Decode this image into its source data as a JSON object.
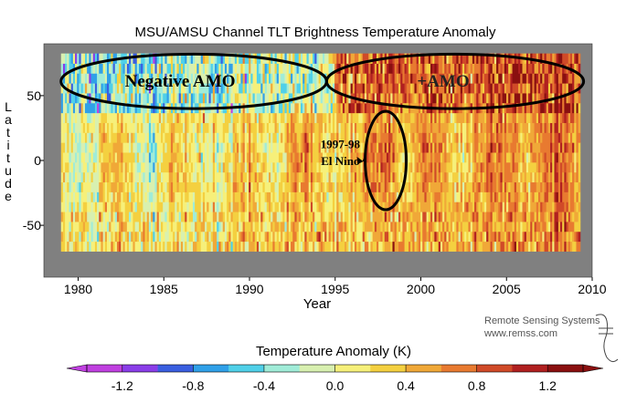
{
  "chart_data": {
    "type": "heatmap",
    "title": "MSU/AMSU Channel TLT Brightness Temperature Anomaly",
    "xlabel": "Year",
    "ylabel": "Latitude",
    "xlim": [
      1978,
      2010
    ],
    "ylim": [
      -90,
      90
    ],
    "data_lat_range": [
      -70,
      82.5
    ],
    "data_year_range": [
      1979,
      2009.3
    ],
    "x_ticks": [
      1980,
      1985,
      1990,
      1995,
      2000,
      2005,
      2010
    ],
    "x_tick_labels": [
      "1980",
      "1985",
      "1990",
      "1995",
      "2000",
      "2005",
      "2010"
    ],
    "y_ticks": [
      50,
      0,
      -50
    ],
    "y_tick_labels": [
      "50",
      "0",
      "-50"
    ],
    "colorbar": {
      "label": "Temperature Anomaly (K)",
      "min": -1.4,
      "max": 1.4,
      "ticks": [
        -1.2,
        -0.8,
        -0.4,
        0.0,
        0.4,
        0.8,
        1.2
      ],
      "tick_labels": [
        "-1.2",
        "-0.8",
        "-0.4",
        "0.0",
        "0.4",
        "0.8",
        "1.2"
      ],
      "colors": [
        "#c040e0",
        "#8a3ee8",
        "#3a5fe0",
        "#30a0e8",
        "#50d0e8",
        "#a0ecd8",
        "#d8f0b0",
        "#f6f07a",
        "#f4d040",
        "#f0a838",
        "#e87a30",
        "#d04a28",
        "#b02020",
        "#8a1010"
      ]
    },
    "annotations": [
      {
        "text": "Negative AMO",
        "years": [
          1979,
          1994.5
        ],
        "lat": [
          40,
          82
        ]
      },
      {
        "text": "+AMO",
        "years": [
          1994.5,
          2009.5
        ],
        "lat": [
          40,
          82
        ]
      },
      {
        "text": "1997-98",
        "x": 1995.3,
        "y": 13
      },
      {
        "text": "El Nino",
        "x": 1995.3,
        "y": 0
      },
      {
        "shape": "ellipse",
        "center": [
          1997.95,
          0
        ],
        "radius": [
          1.2,
          38
        ]
      }
    ],
    "background_color": "#808080"
  },
  "credits": {
    "line1": "Remote Sensing Systems",
    "line2": "www.remss.com"
  }
}
